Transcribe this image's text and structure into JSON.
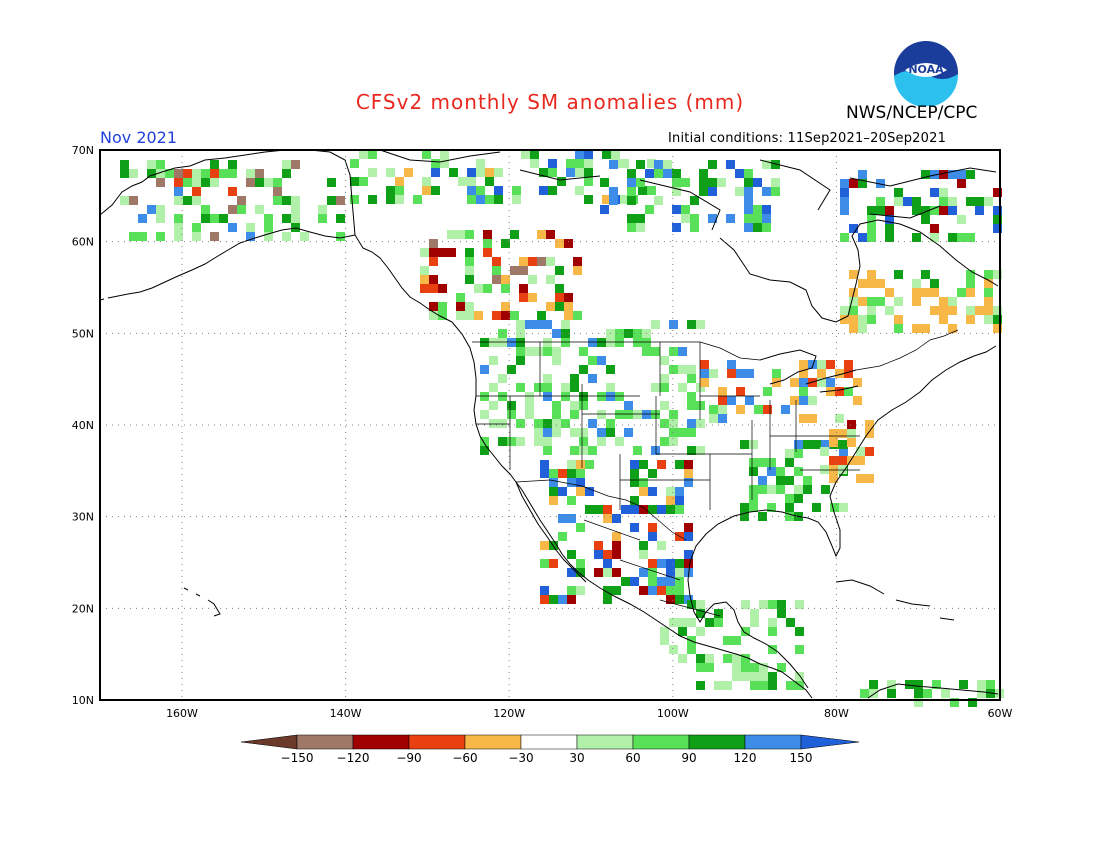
{
  "header": {
    "title": "CFSv2 monthly SM anomalies (mm)",
    "agency": "NWS/NCEP/CPC",
    "period": "Nov 2021",
    "initial_conditions": "Initial conditions: 11Sep2021–20Sep2021",
    "logo_text": "NOAA"
  },
  "map": {
    "lat_labels": [
      "70N",
      "60N",
      "50N",
      "40N",
      "30N",
      "20N",
      "10N"
    ],
    "lon_labels": [
      "160W",
      "140W",
      "120W",
      "100W",
      "80W",
      "60W"
    ],
    "grid": true
  },
  "colorbar": {
    "labels": [
      "−150",
      "−120",
      "−90",
      "−60",
      "−30",
      "30",
      "60",
      "90",
      "120",
      "150"
    ],
    "colors": [
      "#6b3a2a",
      "#a07868",
      "#a00000",
      "#e84010",
      "#f8b848",
      "#ffffff",
      "#b0f0a8",
      "#58e058",
      "#10a018",
      "#3c8ce8",
      "#2060d8"
    ]
  },
  "colors": {
    "title": "#e8281e",
    "period": "#2040e0",
    "grid": "#808080"
  }
}
